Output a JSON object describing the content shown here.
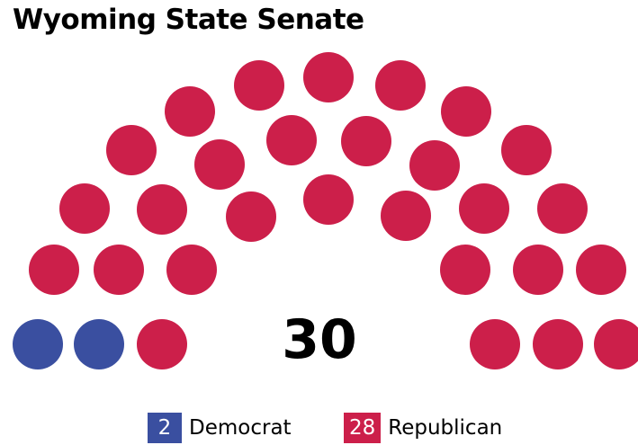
{
  "title": "Wyoming State Senate",
  "total_seats": "30",
  "colors": {
    "democrat": "#3a4fa0",
    "republican": "#cc1f4a"
  },
  "parties": [
    {
      "key": "democrat",
      "name": "Democrat",
      "seats": "2"
    },
    {
      "key": "republican",
      "name": "Republican",
      "seats": "28"
    }
  ],
  "seat_order": [
    "D",
    "D",
    "R",
    "R",
    "R",
    "R",
    "R",
    "R",
    "R",
    "R",
    "R",
    "R",
    "R",
    "R",
    "R",
    "R",
    "R",
    "R",
    "R",
    "R",
    "R",
    "R",
    "R",
    "R",
    "R",
    "R",
    "R",
    "R",
    "R",
    "R"
  ]
}
